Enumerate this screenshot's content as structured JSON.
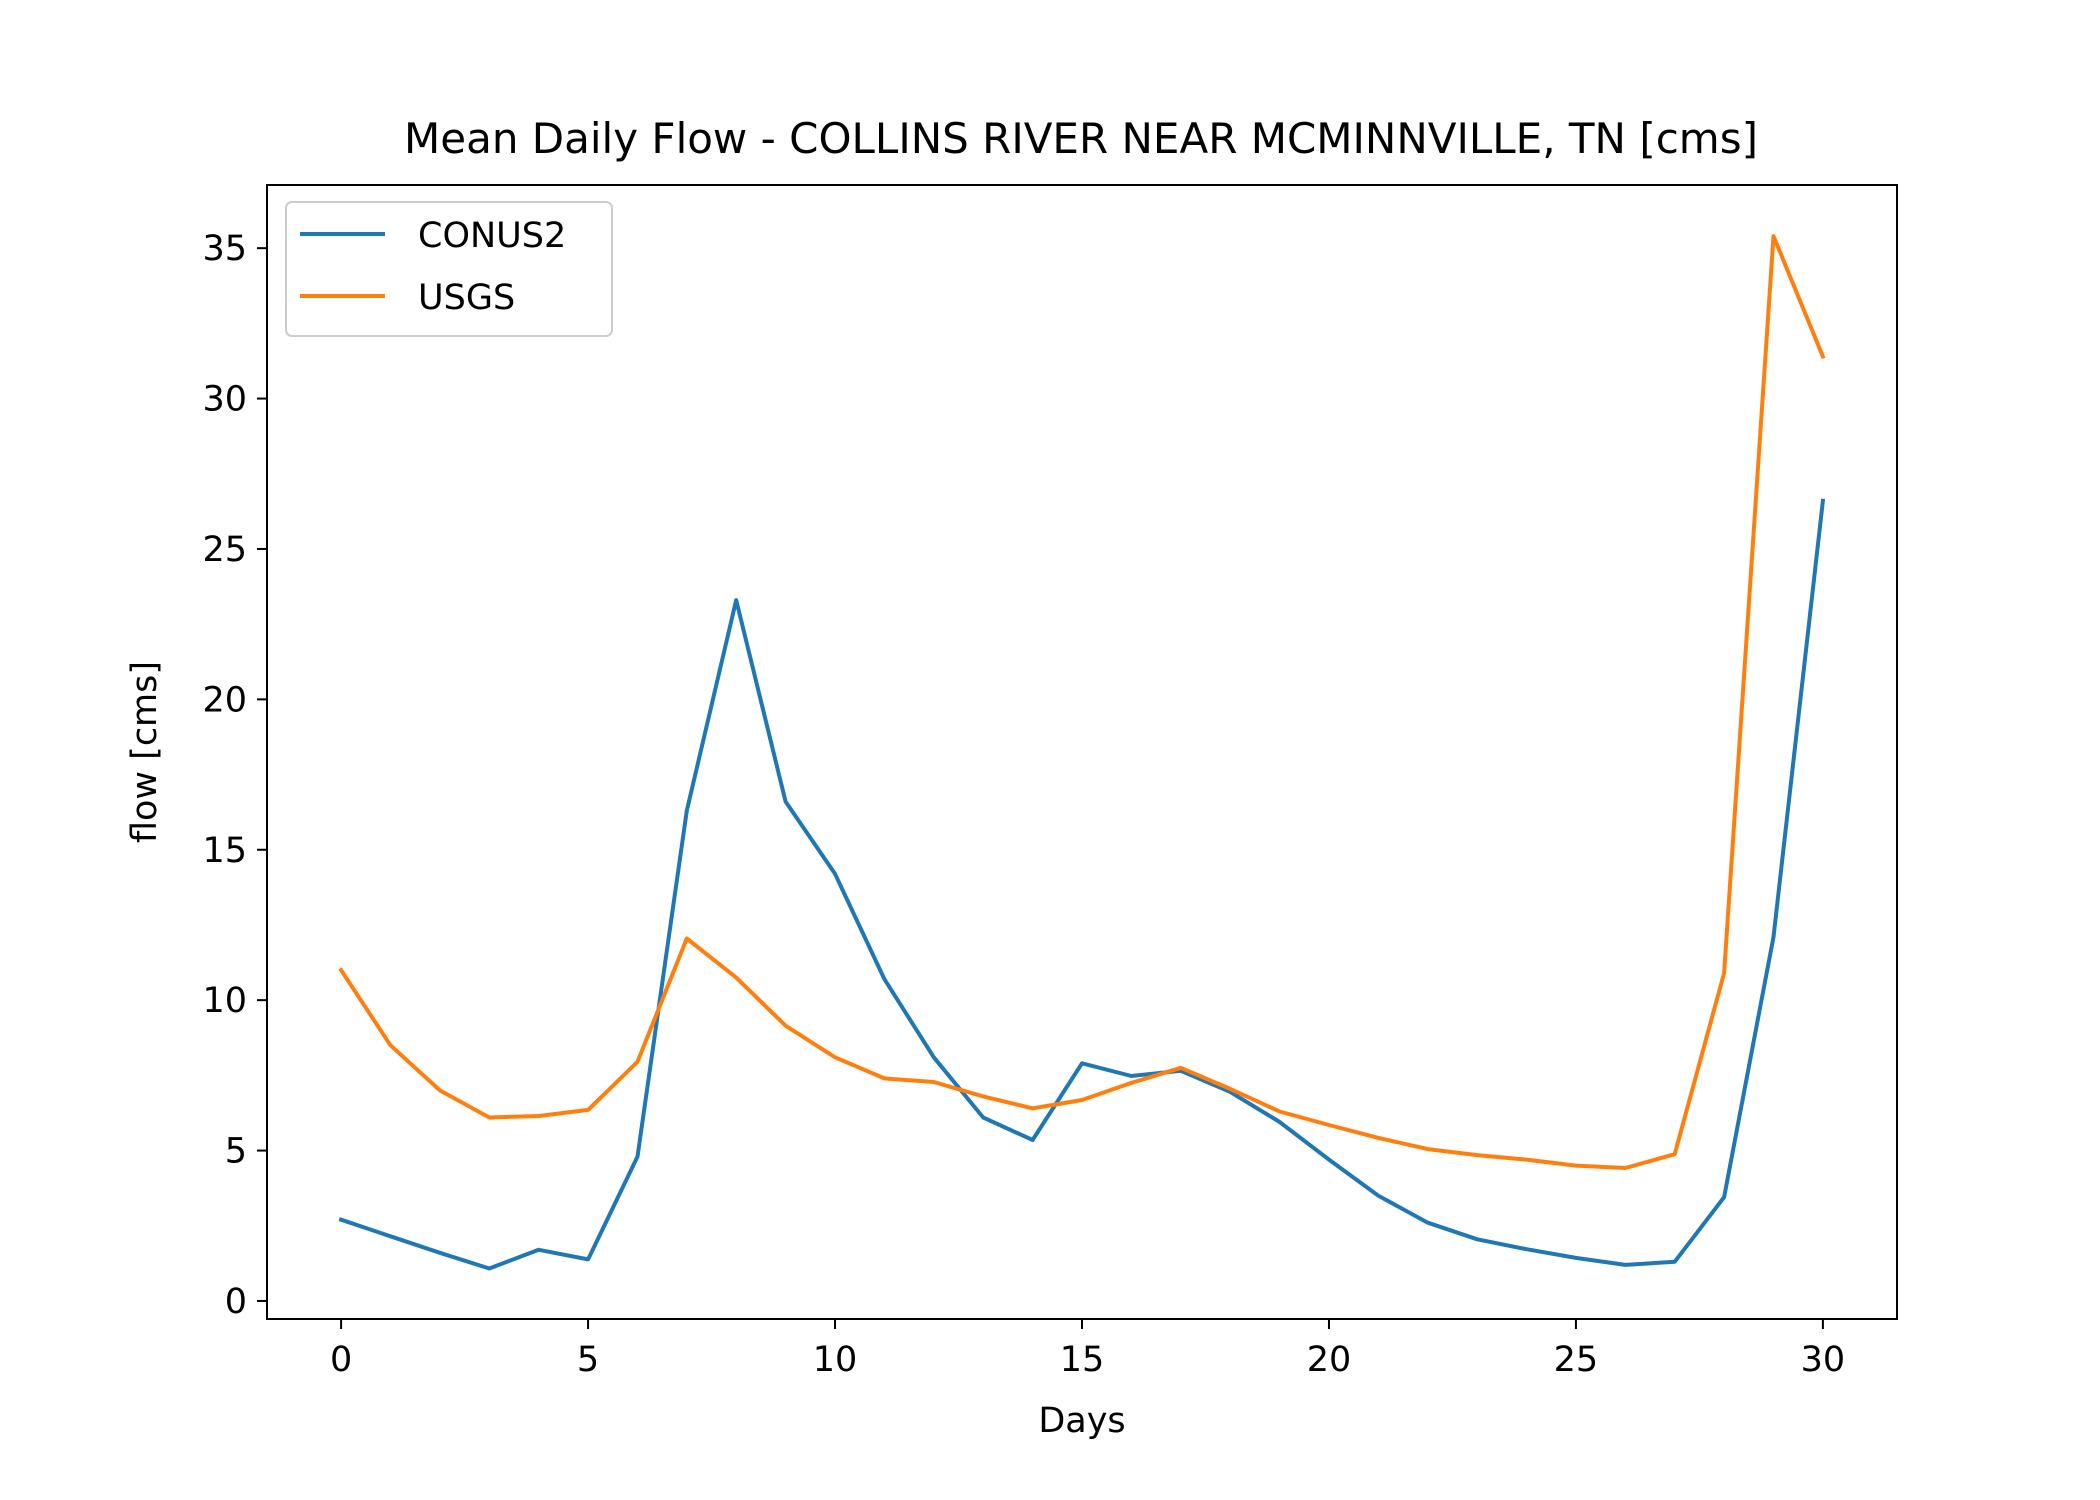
{
  "chart_data": {
    "type": "line",
    "title": "Mean Daily Flow - COLLINS RIVER NEAR MCMINNVILLE, TN [cms]",
    "xlabel": "Days",
    "ylabel": "flow [cms]",
    "xlim": [
      -1.5,
      31.5
    ],
    "ylim": [
      -0.6,
      37.1
    ],
    "xticks": [
      0,
      5,
      10,
      15,
      20,
      25,
      30
    ],
    "yticks": [
      0,
      5,
      10,
      15,
      20,
      25,
      30,
      35
    ],
    "grid": false,
    "legend_position": "upper-left",
    "x": [
      0,
      1,
      2,
      3,
      4,
      5,
      6,
      7,
      8,
      9,
      10,
      11,
      12,
      13,
      14,
      15,
      16,
      17,
      18,
      19,
      20,
      21,
      22,
      23,
      24,
      25,
      26,
      27,
      28,
      29,
      30
    ],
    "series": [
      {
        "name": "CONUS2",
        "color": "#1f77b4",
        "values": [
          2.7,
          2.15,
          1.6,
          1.08,
          1.7,
          1.38,
          4.8,
          16.3,
          23.3,
          16.6,
          14.2,
          10.7,
          8.1,
          6.1,
          5.35,
          7.9,
          7.48,
          7.65,
          6.95,
          5.95,
          4.7,
          3.5,
          2.6,
          2.05,
          1.72,
          1.43,
          1.2,
          1.3,
          3.45,
          12.1,
          26.6
        ]
      },
      {
        "name": "USGS",
        "color": "#ff7f0e",
        "values": [
          11.0,
          8.5,
          7.0,
          6.1,
          6.15,
          6.35,
          7.95,
          12.05,
          10.75,
          9.15,
          8.1,
          7.4,
          7.28,
          6.8,
          6.4,
          6.68,
          7.25,
          7.75,
          7.05,
          6.3,
          5.85,
          5.42,
          5.05,
          4.85,
          4.7,
          4.5,
          4.42,
          4.88,
          10.9,
          35.4,
          31.4
        ]
      }
    ]
  }
}
